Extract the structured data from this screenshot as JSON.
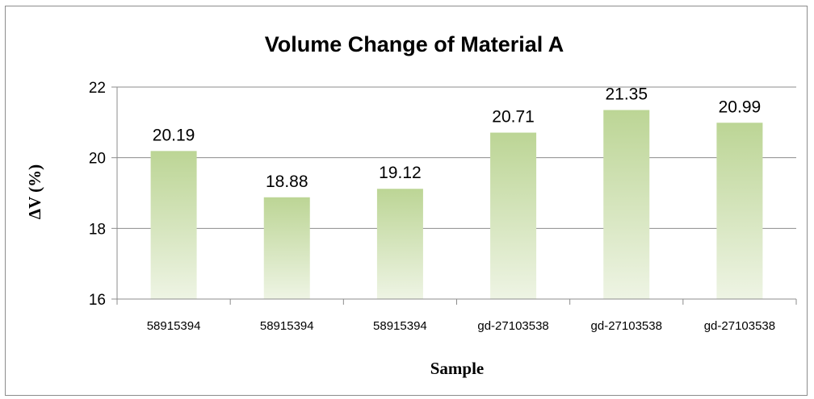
{
  "chart_data": {
    "type": "bar",
    "title": "Volume Change of Material A",
    "xlabel": "Sample",
    "ylabel": "ΔV (%)",
    "categories": [
      "58915394",
      "58915394",
      "58915394",
      "gd-27103538",
      "gd-27103538",
      "gd-27103538"
    ],
    "values": [
      20.19,
      18.88,
      19.12,
      20.71,
      21.35,
      20.99
    ],
    "data_labels": [
      "20.19",
      "18.88",
      "19.12",
      "20.71",
      "21.35",
      "20.99"
    ],
    "ylim": [
      16,
      22
    ],
    "yticks": [
      16,
      18,
      20,
      22
    ],
    "ytick_labels": [
      "16",
      "18",
      "20",
      "22"
    ],
    "grid": true,
    "legend": "none",
    "colors": {
      "bar_top": "#bcd595",
      "bar_bottom": "#eef4e4",
      "grid": "#8c8c8c",
      "frame": "#8c8c8c"
    }
  }
}
